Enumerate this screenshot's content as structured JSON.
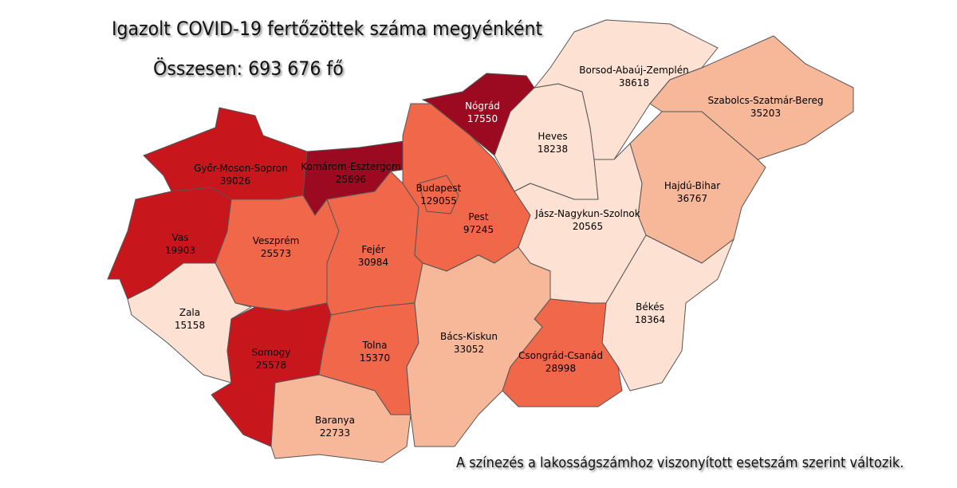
{
  "title": "Igazolt COVID-19 fertőzöttek száma megyénként",
  "total": "Összesen: 693 676 fő",
  "note": "A színezés a lakosságszámhoz viszonyított esetszám szerint változik.",
  "colors": {
    "level1": "#fde2d4",
    "level2": "#f7b799",
    "level3": "#f0674a",
    "level4": "#c8161d",
    "level5": "#9b0a20"
  },
  "counties": [
    {
      "id": "gyor",
      "name": "Győr-Moson-Sopron",
      "cases": "39026",
      "level": "level4"
    },
    {
      "id": "komarom",
      "name": "Komárom-Esztergom",
      "cases": "25696",
      "level": "level5"
    },
    {
      "id": "vas",
      "name": "Vas",
      "cases": "19903",
      "level": "level4"
    },
    {
      "id": "veszprem",
      "name": "Veszprém",
      "cases": "25573",
      "level": "level3"
    },
    {
      "id": "zala",
      "name": "Zala",
      "cases": "15158",
      "level": "level1"
    },
    {
      "id": "somogy",
      "name": "Somogy",
      "cases": "25578",
      "level": "level4"
    },
    {
      "id": "fejer",
      "name": "Fejér",
      "cases": "30984",
      "level": "level3"
    },
    {
      "id": "tolna",
      "name": "Tolna",
      "cases": "15370",
      "level": "level3"
    },
    {
      "id": "baranya",
      "name": "Baranya",
      "cases": "22733",
      "level": "level2"
    },
    {
      "id": "pest",
      "name": "Pest",
      "cases": "97245",
      "level": "level3"
    },
    {
      "id": "budapest",
      "name": "Budapest",
      "cases": "129055",
      "level": "level3"
    },
    {
      "id": "nograd",
      "name": "Nógrád",
      "cases": "17550",
      "level": "level5"
    },
    {
      "id": "heves",
      "name": "Heves",
      "cases": "18238",
      "level": "level1"
    },
    {
      "id": "borsod",
      "name": "Borsod-Abaúj-Zemplén",
      "cases": "38618",
      "level": "level1"
    },
    {
      "id": "szabolcs",
      "name": "Szabolcs-Szatmár-Bereg",
      "cases": "35203",
      "level": "level2"
    },
    {
      "id": "hajdu",
      "name": "Hajdú-Bihar",
      "cases": "36767",
      "level": "level2"
    },
    {
      "id": "jasz",
      "name": "Jász-Nagykun-Szolnok",
      "cases": "20565",
      "level": "level1"
    },
    {
      "id": "bekes",
      "name": "Békés",
      "cases": "18364",
      "level": "level1"
    },
    {
      "id": "csongrad",
      "name": "Csongrád-Csanád",
      "cases": "28998",
      "level": "level3"
    },
    {
      "id": "bacs",
      "name": "Bács-Kiskun",
      "cases": "33052",
      "level": "level2"
    }
  ]
}
